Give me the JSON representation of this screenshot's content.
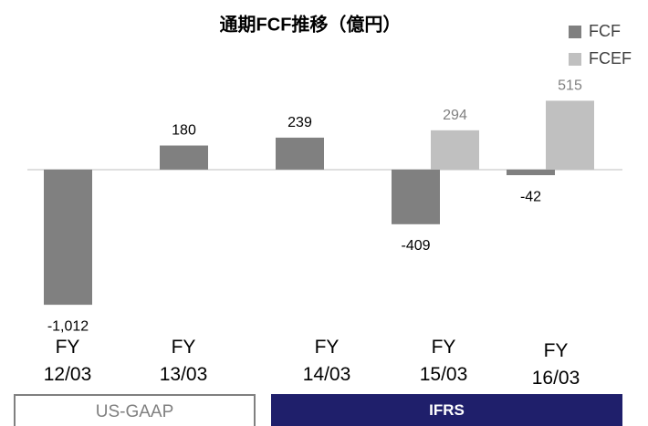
{
  "chart_data": {
    "type": "bar",
    "title": "通期FCF推移（億円）",
    "categories": [
      "FY 12/03",
      "FY 13/03",
      "FY 14/03",
      "FY 15/03",
      "FY 16/03"
    ],
    "series": [
      {
        "name": "FCF",
        "color": "#808080",
        "values": [
          -1012,
          180,
          239,
          -409,
          -42
        ],
        "value_labels": [
          "-1,012",
          "180",
          "239",
          "-409",
          "-42"
        ]
      },
      {
        "name": "FCEF",
        "color": "#c0c0c0",
        "values": [
          null,
          null,
          null,
          294,
          515
        ],
        "value_labels": [
          null,
          null,
          null,
          "294",
          "515"
        ]
      }
    ],
    "ylim": [
      -1100,
      600
    ],
    "groups": [
      "US-GAAP",
      "IFRS"
    ]
  }
}
